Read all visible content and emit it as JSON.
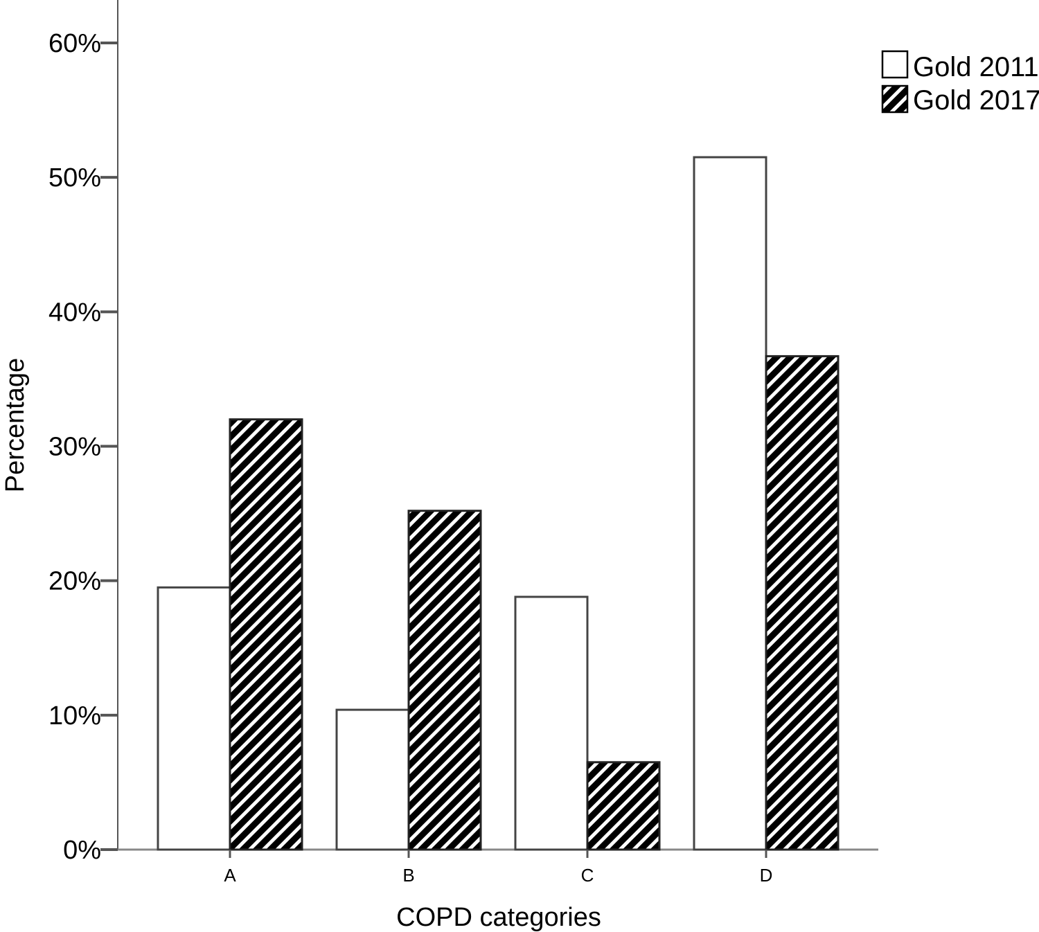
{
  "chart_data": {
    "type": "bar",
    "title": "",
    "xlabel": "COPD categories",
    "ylabel": "Percentage",
    "categories": [
      "A",
      "B",
      "C",
      "D"
    ],
    "series": [
      {
        "name": "Gold 2011",
        "values": [
          19.5,
          10.4,
          18.8,
          51.5
        ],
        "fill": "solid",
        "color": "#ffffff"
      },
      {
        "name": "Gold 2017",
        "values": [
          32.0,
          25.2,
          6.5,
          36.7
        ],
        "fill": "hatched",
        "color": "#000000"
      }
    ],
    "ylim": [
      0,
      60
    ],
    "yticks": [
      0,
      10,
      20,
      30,
      40,
      50,
      60
    ],
    "ytick_labels": [
      "0%",
      "10%",
      "20%",
      "30%",
      "40%",
      "50%",
      "60%"
    ],
    "grid": false,
    "legend_position": "top-right"
  }
}
